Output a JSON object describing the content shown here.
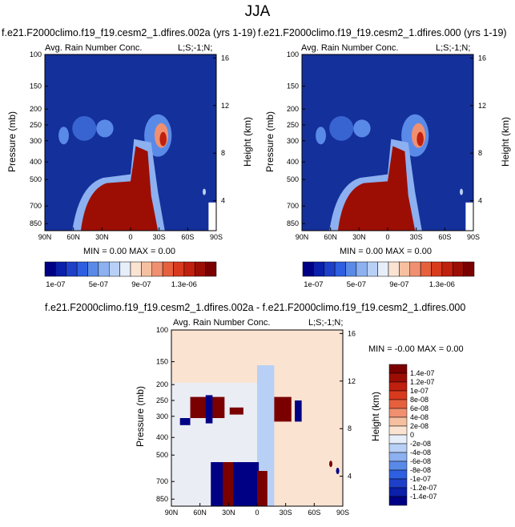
{
  "page_title": "JJA",
  "colorbar_top": {
    "colors": [
      "#000084",
      "#0a1faa",
      "#1e3fc8",
      "#2e5fe0",
      "#5a8ae8",
      "#8cb0f0",
      "#b8d0f6",
      "#e6eefa",
      "#fbe3d2",
      "#f6c0a0",
      "#f09070",
      "#e6603e",
      "#d83a1e",
      "#c0200e",
      "#9c0e04",
      "#7a0000"
    ],
    "labels": [
      "1e-07",
      "5e-07",
      "9e-07",
      "1.3e-06"
    ]
  },
  "colorbar_diff": {
    "colors": [
      "#000084",
      "#0a1faa",
      "#1e3fc8",
      "#2e5fe0",
      "#5a8ae8",
      "#8cb0f0",
      "#b8d0f6",
      "#e6eefa",
      "#fbe3d2",
      "#f6c0a0",
      "#f09070",
      "#e6603e",
      "#d83a1e",
      "#c0200e",
      "#9c0e04",
      "#7a0000"
    ],
    "labels": [
      "-1.4e-07",
      "-1.2e-07",
      "-1e-07",
      "-8e-08",
      "-6e-08",
      "-4e-08",
      "-2e-08",
      "0",
      "2e-08",
      "4e-08",
      "6e-08",
      "8e-08",
      "1e-07",
      "1.2e-07",
      "1.4e-07"
    ]
  },
  "chart_data": [
    {
      "type": "heatmap",
      "title": "f.e21.F2000climo.f19_f19.cesm2_1.dfires.002a (yrs 1-19)",
      "subtitle_left": "Avg. Rain Number Conc.",
      "subtitle_right": "L;S;-1;N;",
      "ylabel": "Pressure (mb)",
      "ylabel_right": "Height (km)",
      "x_ticks": [
        "90N",
        "60N",
        "30N",
        "0",
        "30S",
        "60S",
        "90S"
      ],
      "y_ticks": [
        "100",
        "150",
        "200",
        "250",
        "300",
        "400",
        "500",
        "700",
        "850"
      ],
      "y_right_ticks": [
        "16",
        "12",
        "8",
        "4"
      ],
      "stats": "MIN =   0.00   MAX =   0.00"
    },
    {
      "type": "heatmap",
      "title": "f.e21.F2000climo.f19_f19.cesm2_1.dfires.000 (yrs 1-19)",
      "subtitle_left": "Avg. Rain Number Conc.",
      "subtitle_right": "L;S;-1;N;",
      "ylabel": "Pressure (mb)",
      "ylabel_right": "Height (km)",
      "x_ticks": [
        "90N",
        "60N",
        "30N",
        "0",
        "30S",
        "60S",
        "90S"
      ],
      "y_ticks": [
        "100",
        "150",
        "200",
        "250",
        "300",
        "400",
        "500",
        "700",
        "850"
      ],
      "y_right_ticks": [
        "16",
        "12",
        "8",
        "4"
      ],
      "stats": "MIN =   0.00   MAX =   0.00"
    },
    {
      "type": "heatmap",
      "title": "f.e21.F2000climo.f19_f19.cesm2_1.dfires.002a - f.e21.F2000climo.f19_f19.cesm2_1.dfires.000",
      "subtitle_left": "Avg. Rain Number Conc.",
      "subtitle_right": "L;S;-1;N;",
      "ylabel": "Pressure (mb)",
      "ylabel_right": "Height (km)",
      "x_ticks": [
        "90N",
        "60N",
        "30N",
        "0",
        "30S",
        "60S",
        "90S"
      ],
      "y_ticks": [
        "100",
        "150",
        "200",
        "250",
        "300",
        "400",
        "500",
        "700",
        "850"
      ],
      "y_right_ticks": [
        "16",
        "12",
        "8",
        "4"
      ],
      "stats": "MIN =  -0.00   MAX =   0.00"
    }
  ]
}
